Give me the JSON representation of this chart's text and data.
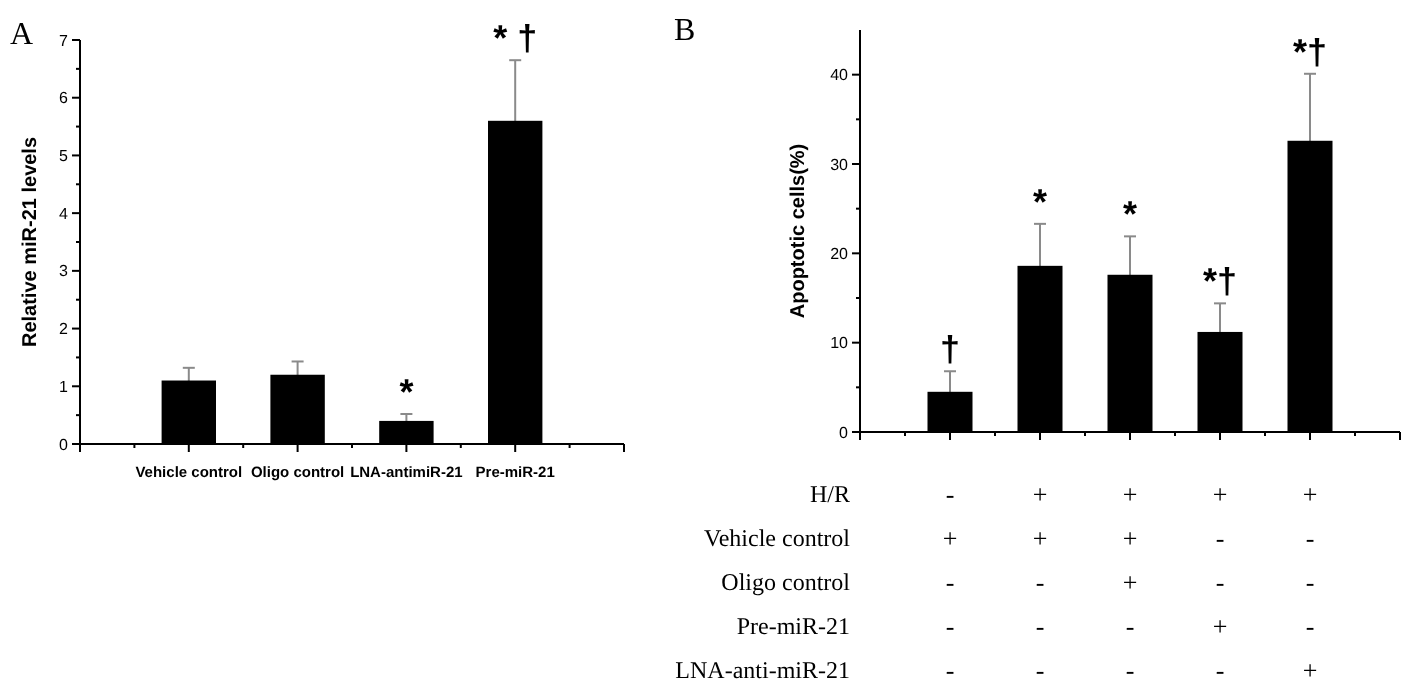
{
  "chart_data": [
    {
      "type": "bar",
      "title": "A",
      "ylabel": "Relative miR-21 levels",
      "categories": [
        "Vehicle control",
        "Oligo control",
        "LNA-antimiR-21",
        "Pre-miR-21"
      ],
      "values": [
        1.1,
        1.2,
        0.4,
        5.6
      ],
      "errors": [
        0.22,
        0.23,
        0.12,
        1.05
      ],
      "color": "#000000",
      "ylim": [
        0,
        7
      ],
      "yticks": [
        0,
        1,
        2,
        3,
        4,
        5,
        6,
        7
      ],
      "annotations": [
        "*",
        "* †"
      ]
    },
    {
      "type": "bar",
      "title": "B",
      "ylabel": "Apoptotic cells(%)",
      "categories": [
        "-\n+\n-\n-\n-",
        "+\n+\n-\n-\n-",
        "+\n+\n+\n-\n-",
        "+\n-\n-\n+\n-",
        "+\n-\n-\n-\n+"
      ],
      "values": [
        4.5,
        18.6,
        17.6,
        11.2,
        32.6
      ],
      "errors": [
        2.3,
        4.7,
        4.3,
        3.2,
        7.5
      ],
      "color": "#000000",
      "ylim": [
        0,
        45
      ],
      "yticks": [
        0,
        10,
        20,
        30,
        40
      ],
      "annotations": [
        "H/R",
        "Vehicle control",
        "Oligo control",
        "Pre-miR-21",
        "LNA-anti-miR-21",
        "†",
        "*",
        "*",
        "*†",
        "*†"
      ]
    }
  ]
}
